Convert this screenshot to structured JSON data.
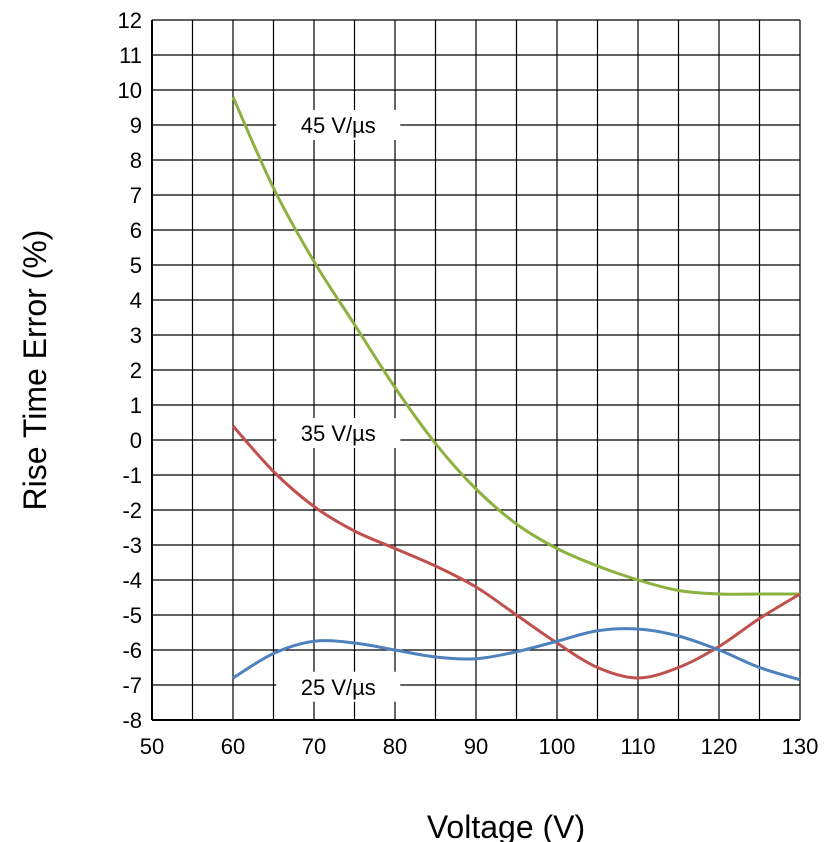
{
  "chart_data": {
    "type": "line",
    "xlabel": "Voltage (V)",
    "ylabel": "Rise Time Error (%)",
    "xlim": [
      50,
      130
    ],
    "ylim": [
      -8,
      12
    ],
    "xticks": [
      50,
      60,
      70,
      80,
      90,
      100,
      110,
      120,
      130
    ],
    "yticks": [
      12,
      11,
      10,
      9,
      8,
      7,
      6,
      5,
      4,
      3,
      2,
      1,
      0,
      -1,
      -2,
      -3,
      -4,
      -5,
      -6,
      -7,
      -8
    ],
    "grid": true,
    "minor_grid_x_step": 5,
    "colors": {
      "45": "#8bb13f",
      "35": "#c0504d",
      "25": "#4f81bd"
    },
    "series": [
      {
        "name": "45 V/µs",
        "x": [
          60,
          65,
          70,
          75,
          80,
          85,
          90,
          95,
          100,
          105,
          110,
          115,
          120,
          125,
          130
        ],
        "values": [
          9.8,
          7.2,
          5.1,
          3.3,
          1.5,
          -0.1,
          -1.4,
          -2.4,
          -3.1,
          -3.6,
          -4.0,
          -4.3,
          -4.4,
          -4.4,
          -4.4
        ]
      },
      {
        "name": "35 V/µs",
        "x": [
          60,
          65,
          70,
          75,
          80,
          85,
          90,
          95,
          100,
          105,
          110,
          115,
          120,
          125,
          130
        ],
        "values": [
          0.4,
          -0.9,
          -1.9,
          -2.6,
          -3.1,
          -3.6,
          -4.2,
          -5.0,
          -5.8,
          -6.5,
          -6.8,
          -6.5,
          -5.9,
          -5.1,
          -4.4
        ]
      },
      {
        "name": "25 V/µs",
        "x": [
          60,
          65,
          70,
          75,
          80,
          85,
          90,
          95,
          100,
          105,
          110,
          115,
          120,
          125,
          130
        ],
        "values": [
          -6.8,
          -6.1,
          -5.75,
          -5.8,
          -6.0,
          -6.2,
          -6.25,
          -6.05,
          -5.75,
          -5.45,
          -5.4,
          -5.6,
          -6.0,
          -6.5,
          -6.85
        ]
      }
    ],
    "labels": [
      {
        "text": "45 V/µs",
        "x": 73,
        "y": 9
      },
      {
        "text": "35 V/µs",
        "x": 73,
        "y": 0.2
      },
      {
        "text": "25 V/µs",
        "x": 73,
        "y": -7.05
      }
    ]
  }
}
